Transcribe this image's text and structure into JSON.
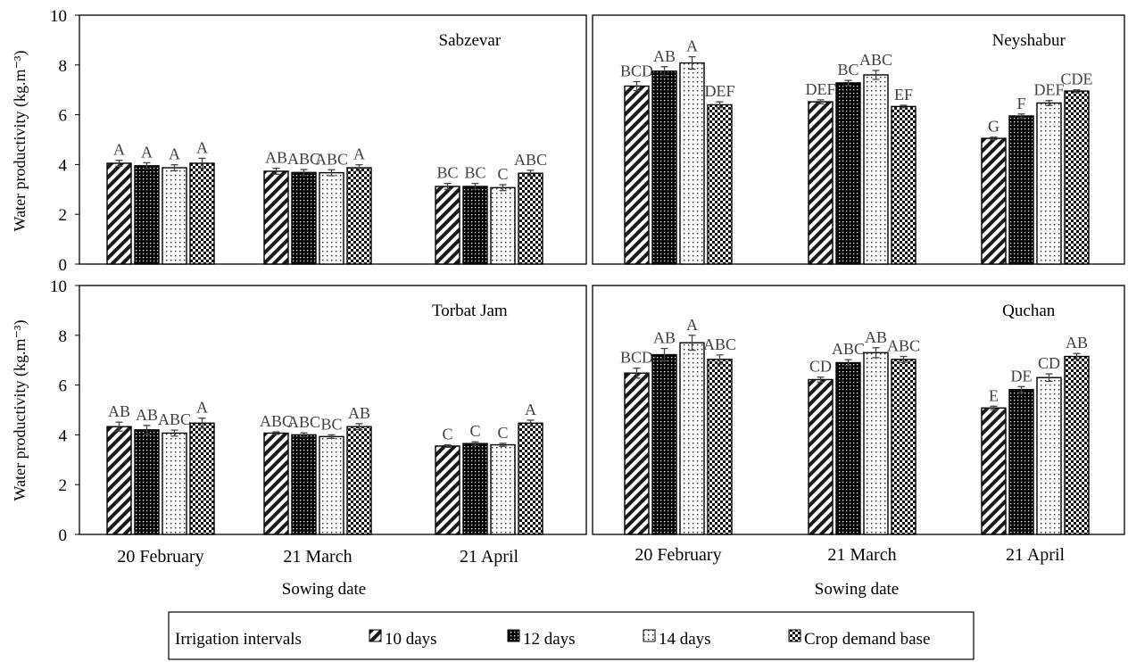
{
  "figure": {
    "ylabel": "Water productivity (kg.m⁻³)",
    "xlabel": "Sowing date",
    "legend_title": "Irrigation intervals",
    "legend_placement": "bottom-center"
  },
  "chart_data": [
    {
      "type": "bar",
      "title": "Sabzevar",
      "categories": [
        "20 February",
        "21 March",
        "21 April"
      ],
      "ylim": [
        0,
        10
      ],
      "yticks": [
        0,
        2,
        4,
        6,
        8,
        10
      ],
      "grid": false,
      "series": [
        {
          "name": "10 days",
          "values": [
            4.05,
            3.73,
            3.12
          ],
          "errors": [
            0.12,
            0.12,
            0.12
          ],
          "letters": [
            "A",
            "AB",
            "BC"
          ]
        },
        {
          "name": "12 days",
          "values": [
            3.95,
            3.68,
            3.12
          ],
          "errors": [
            0.12,
            0.12,
            0.12
          ],
          "letters": [
            "A",
            "ABC",
            "BC"
          ]
        },
        {
          "name": "14 days",
          "values": [
            3.87,
            3.67,
            3.07
          ],
          "errors": [
            0.12,
            0.12,
            0.12
          ],
          "letters": [
            "A",
            "ABC",
            "C"
          ]
        },
        {
          "name": "Crop demand base",
          "values": [
            4.05,
            3.87,
            3.65
          ],
          "errors": [
            0.2,
            0.12,
            0.12
          ],
          "letters": [
            "A",
            "A",
            "ABC"
          ]
        }
      ]
    },
    {
      "type": "bar",
      "title": "Neyshabur",
      "categories": [
        "20 February",
        "21 March",
        "21 April"
      ],
      "ylim": [
        0,
        10
      ],
      "yticks": [
        0,
        2,
        4,
        6,
        8,
        10
      ],
      "grid": false,
      "series": [
        {
          "name": "10 days",
          "values": [
            7.15,
            6.52,
            5.05
          ],
          "errors": [
            0.18,
            0.08,
            0.05
          ],
          "letters": [
            "BCD",
            "DEF",
            "G"
          ]
        },
        {
          "name": "12 days",
          "values": [
            7.75,
            7.28,
            5.95
          ],
          "errors": [
            0.18,
            0.1,
            0.08
          ],
          "letters": [
            "AB",
            "BC",
            "F"
          ]
        },
        {
          "name": "14 days",
          "values": [
            8.08,
            7.6,
            6.47
          ],
          "errors": [
            0.25,
            0.18,
            0.1
          ],
          "letters": [
            "A",
            "ABC",
            "DEF"
          ]
        },
        {
          "name": "Crop demand base",
          "values": [
            6.4,
            6.33,
            6.95
          ],
          "errors": [
            0.12,
            0.05,
            0.05
          ],
          "letters": [
            "DEF",
            "EF",
            "CDE"
          ]
        }
      ]
    },
    {
      "type": "bar",
      "title": "Torbat Jam",
      "categories": [
        "20 February",
        "21 March",
        "21 April"
      ],
      "ylim": [
        0,
        10
      ],
      "yticks": [
        0,
        2,
        4,
        6,
        8,
        10
      ],
      "grid": false,
      "series": [
        {
          "name": "10 days",
          "values": [
            4.33,
            4.07,
            3.55
          ],
          "errors": [
            0.18,
            0.05,
            0.05
          ],
          "letters": [
            "AB",
            "ABC",
            "C"
          ]
        },
        {
          "name": "12 days",
          "values": [
            4.2,
            4.0,
            3.65
          ],
          "errors": [
            0.18,
            0.08,
            0.07
          ],
          "letters": [
            "AB",
            "ABC",
            "C"
          ]
        },
        {
          "name": "14 days",
          "values": [
            4.07,
            3.93,
            3.6
          ],
          "errors": [
            0.12,
            0.07,
            0.06
          ],
          "letters": [
            "ABC",
            "BC",
            "C"
          ]
        },
        {
          "name": "Crop demand base",
          "values": [
            4.47,
            4.33,
            4.47
          ],
          "errors": [
            0.2,
            0.12,
            0.12
          ],
          "letters": [
            "A",
            "AB",
            "A"
          ]
        }
      ]
    },
    {
      "type": "bar",
      "title": "Quchan",
      "categories": [
        "20 February",
        "21 March",
        "21 April"
      ],
      "ylim": [
        0,
        10
      ],
      "yticks": [
        0,
        2,
        4,
        6,
        8,
        10
      ],
      "grid": false,
      "series": [
        {
          "name": "10 days",
          "values": [
            6.48,
            6.22,
            5.08
          ],
          "errors": [
            0.2,
            0.1,
            0.07
          ],
          "letters": [
            "BCD",
            "CD",
            "E"
          ]
        },
        {
          "name": "12 days",
          "values": [
            7.22,
            6.9,
            5.82
          ],
          "errors": [
            0.25,
            0.12,
            0.12
          ],
          "letters": [
            "AB",
            "ABC",
            "DE"
          ]
        },
        {
          "name": "14 days",
          "values": [
            7.7,
            7.3,
            6.3
          ],
          "errors": [
            0.3,
            0.2,
            0.15
          ],
          "letters": [
            "A",
            "AB",
            "CD"
          ]
        },
        {
          "name": "Crop demand base",
          "values": [
            7.03,
            7.03,
            7.15
          ],
          "errors": [
            0.18,
            0.12,
            0.12
          ],
          "letters": [
            "ABC",
            "ABC",
            "AB"
          ]
        }
      ]
    }
  ]
}
